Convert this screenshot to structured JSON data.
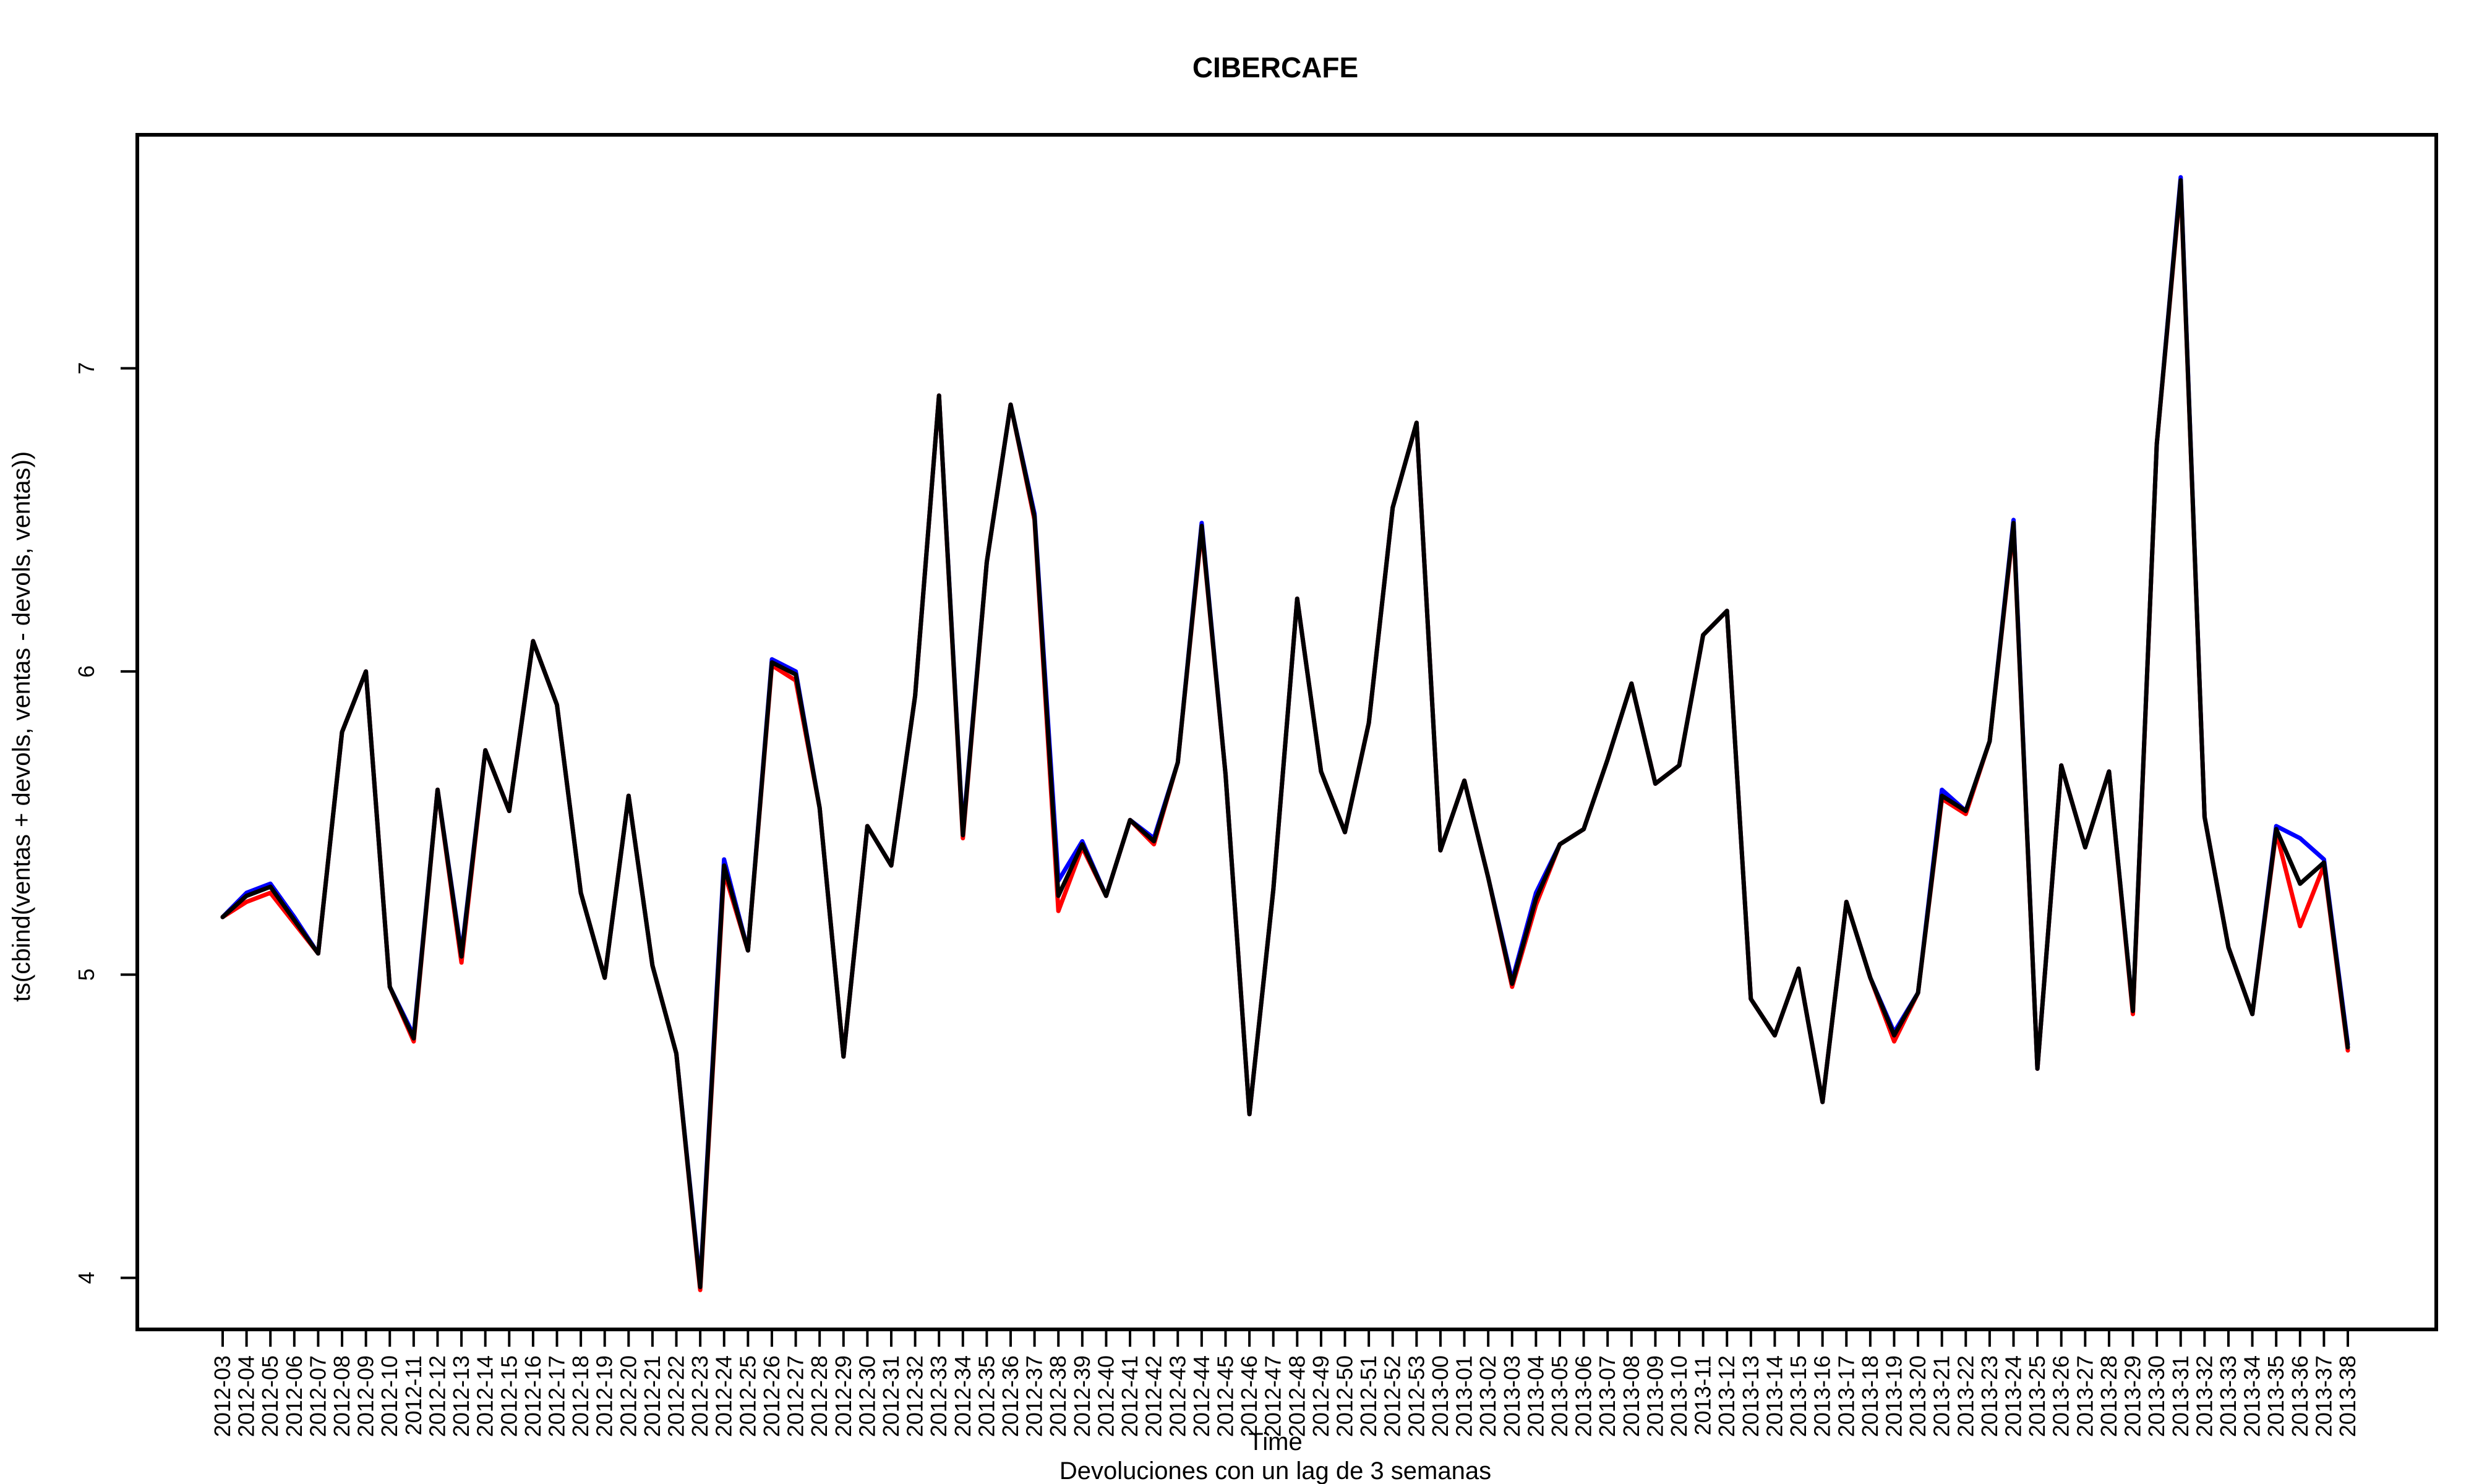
{
  "chart_data": {
    "type": "line",
    "title": "CIBERCAFE",
    "xlabel": "Time",
    "ylabel": "ts(cbind(ventas + devols, ventas - devols, ventas))",
    "subtitle": "Devoluciones con un lag de 3 semanas",
    "ylim": [
      3.83,
      7.77
    ],
    "yticks": [
      4,
      5,
      6,
      7
    ],
    "grid": false,
    "categories": [
      "2012-03",
      "2012-04",
      "2012-05",
      "2012-06",
      "2012-07",
      "2012-08",
      "2012-09",
      "2012-10",
      "2012-11",
      "2012-12",
      "2012-13",
      "2012-14",
      "2012-15",
      "2012-16",
      "2012-17",
      "2012-18",
      "2012-19",
      "2012-20",
      "2012-21",
      "2012-22",
      "2012-23",
      "2012-24",
      "2012-25",
      "2012-26",
      "2012-27",
      "2012-28",
      "2012-29",
      "2012-30",
      "2012-31",
      "2012-32",
      "2012-33",
      "2012-34",
      "2012-35",
      "2012-36",
      "2012-37",
      "2012-38",
      "2012-39",
      "2012-40",
      "2012-41",
      "2012-42",
      "2012-43",
      "2012-44",
      "2012-45",
      "2012-46",
      "2012-47",
      "2012-48",
      "2012-49",
      "2012-50",
      "2012-51",
      "2012-52",
      "2012-53",
      "2013-00",
      "2013-01",
      "2013-02",
      "2013-03",
      "2013-04",
      "2013-05",
      "2013-06",
      "2013-07",
      "2013-08",
      "2013-09",
      "2013-10",
      "2013-11",
      "2013-12",
      "2013-13",
      "2013-14",
      "2013-15",
      "2013-16",
      "2013-17",
      "2013-18",
      "2013-19",
      "2013-20",
      "2013-21",
      "2013-22",
      "2013-23",
      "2013-24",
      "2013-25",
      "2013-26",
      "2013-27",
      "2013-28",
      "2013-29",
      "2013-30",
      "2013-31",
      "2013-32",
      "2013-33",
      "2013-34",
      "2013-35",
      "2013-36",
      "2013-37",
      "2013-38"
    ],
    "series": [
      {
        "name": "ventas + devols",
        "color": "#0000ff",
        "values": [
          5.19,
          5.27,
          5.3,
          5.19,
          5.07,
          5.8,
          6.0,
          4.96,
          4.8,
          5.61,
          5.07,
          5.74,
          5.54,
          6.1,
          5.89,
          5.27,
          4.99,
          5.59,
          5.03,
          4.74,
          3.98,
          5.38,
          5.08,
          6.04,
          6.0,
          5.55,
          4.73,
          5.49,
          5.36,
          5.92,
          6.91,
          5.47,
          6.36,
          6.88,
          6.52,
          5.31,
          5.44,
          5.26,
          5.51,
          5.45,
          5.7,
          6.49,
          5.66,
          4.54,
          5.28,
          6.24,
          5.67,
          5.47,
          5.83,
          6.54,
          6.82,
          5.41,
          5.64,
          5.32,
          4.98,
          5.27,
          5.43,
          5.48,
          5.71,
          5.96,
          5.63,
          5.69,
          6.12,
          6.2,
          4.92,
          4.8,
          5.02,
          4.58,
          5.24,
          4.99,
          4.81,
          4.94,
          5.61,
          5.54,
          5.77,
          6.5,
          4.69,
          5.69,
          5.42,
          5.67,
          4.88,
          6.75,
          7.63,
          5.52,
          5.09,
          4.87,
          5.49,
          5.45,
          5.38,
          4.77
        ]
      },
      {
        "name": "ventas - devols",
        "color": "#ff0000",
        "values": [
          5.19,
          5.24,
          5.27,
          5.17,
          5.07,
          5.8,
          6.0,
          4.96,
          4.78,
          5.61,
          5.04,
          5.74,
          5.54,
          6.1,
          5.89,
          5.27,
          4.99,
          5.59,
          5.03,
          4.74,
          3.96,
          5.34,
          5.08,
          6.02,
          5.97,
          5.55,
          4.73,
          5.49,
          5.36,
          5.92,
          6.91,
          5.45,
          6.36,
          6.88,
          6.5,
          5.21,
          5.42,
          5.26,
          5.51,
          5.43,
          5.7,
          6.47,
          5.66,
          4.54,
          5.28,
          6.24,
          5.67,
          5.47,
          5.83,
          6.54,
          6.82,
          5.41,
          5.64,
          5.32,
          4.96,
          5.23,
          5.43,
          5.48,
          5.71,
          5.96,
          5.63,
          5.69,
          6.12,
          6.2,
          4.92,
          4.8,
          5.02,
          4.58,
          5.24,
          4.99,
          4.78,
          4.94,
          5.58,
          5.53,
          5.77,
          6.48,
          4.69,
          5.69,
          5.42,
          5.67,
          4.87,
          6.75,
          7.61,
          5.52,
          5.09,
          4.87,
          5.47,
          5.16,
          5.36,
          4.75
        ]
      },
      {
        "name": "ventas",
        "color": "#000000",
        "values": [
          5.19,
          5.26,
          5.29,
          5.18,
          5.07,
          5.8,
          6.0,
          4.96,
          4.79,
          5.61,
          5.06,
          5.74,
          5.54,
          6.1,
          5.89,
          5.27,
          4.99,
          5.59,
          5.03,
          4.74,
          3.97,
          5.36,
          5.08,
          6.03,
          5.99,
          5.55,
          4.73,
          5.49,
          5.36,
          5.92,
          6.91,
          5.46,
          6.36,
          6.88,
          6.51,
          5.26,
          5.43,
          5.26,
          5.51,
          5.44,
          5.7,
          6.48,
          5.66,
          4.54,
          5.28,
          6.24,
          5.67,
          5.47,
          5.83,
          6.54,
          6.82,
          5.41,
          5.64,
          5.32,
          4.97,
          5.25,
          5.43,
          5.48,
          5.71,
          5.96,
          5.63,
          5.69,
          6.12,
          6.2,
          4.92,
          4.8,
          5.02,
          4.58,
          5.24,
          4.99,
          4.8,
          4.94,
          5.59,
          5.54,
          5.77,
          6.49,
          4.69,
          5.69,
          5.42,
          5.67,
          4.88,
          6.75,
          7.62,
          5.52,
          5.09,
          4.87,
          5.48,
          5.3,
          5.37,
          4.76
        ]
      }
    ]
  }
}
